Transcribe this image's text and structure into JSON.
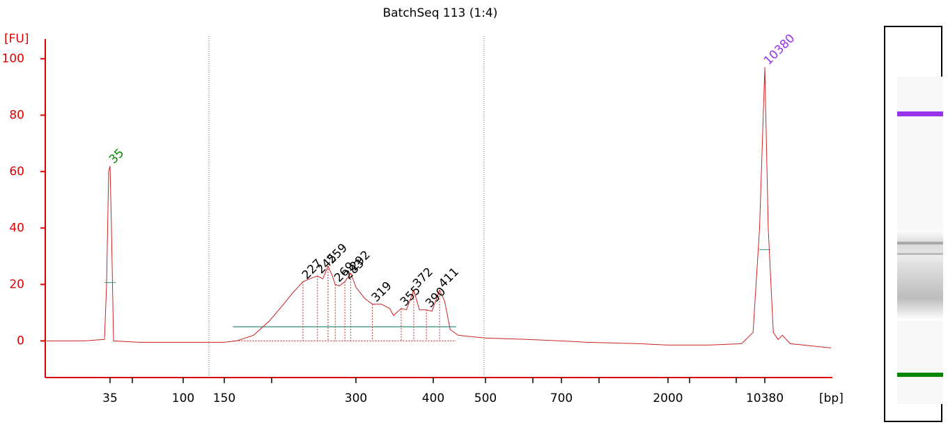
{
  "chart_data": {
    "type": "line",
    "title": "BatchSeq 113 (1:4)",
    "y_label": "[FU]",
    "x_label": "[bp]",
    "color": "#cc2222",
    "axis_color": "#dd0000",
    "xlim": [
      14,
      32000
    ],
    "ylim": [
      -13,
      107
    ],
    "yticks": [
      0,
      20,
      40,
      60,
      80,
      100
    ],
    "xticks": [
      35,
      100,
      150,
      300,
      400,
      500,
      700,
      2000,
      10380
    ],
    "x": [
      14,
      24,
      32.3,
      33.3,
      34.3,
      35,
      35.7,
      36.8,
      53,
      100,
      150,
      160,
      175,
      190,
      205,
      215,
      227,
      235,
      245,
      252,
      259,
      265,
      269,
      275,
      283,
      292,
      300,
      310,
      319,
      330,
      340,
      345,
      355,
      362,
      372,
      380,
      390,
      398,
      411,
      420,
      430,
      445,
      470,
      500,
      600,
      700,
      900,
      1500,
      2000,
      4000,
      7000,
      8500,
      9500,
      10380,
      11000,
      12000,
      13000,
      14000,
      16000,
      20000,
      32000
    ],
    "values": [
      0,
      0,
      0.5,
      20,
      60,
      62,
      40,
      0,
      -0.5,
      -0.5,
      -0.5,
      0,
      2,
      7,
      13,
      17,
      21,
      22,
      23,
      22,
      26.5,
      23,
      20,
      19.5,
      21,
      24,
      19,
      15,
      13,
      13,
      11.5,
      9,
      11.5,
      11,
      18,
      11,
      11,
      10.5,
      18,
      14,
      4,
      2,
      1.5,
      1,
      0.5,
      0,
      -0.5,
      -1,
      -1.5,
      -1.5,
      -1,
      3,
      40,
      97,
      40,
      3,
      0.5,
      2,
      -1,
      -1.5,
      -2.5
    ],
    "peaks": [
      {
        "x": 35,
        "y": 62,
        "color": "#008800",
        "marker": true
      },
      {
        "x": 227,
        "y": 21,
        "color": "#000000"
      },
      {
        "x": 245,
        "y": 23,
        "color": "#000000"
      },
      {
        "x": 259,
        "y": 26.5,
        "color": "#000000"
      },
      {
        "x": 269,
        "y": 20,
        "color": "#000000"
      },
      {
        "x": 283,
        "y": 21,
        "color": "#000000"
      },
      {
        "x": 292,
        "y": 24,
        "color": "#000000"
      },
      {
        "x": 319,
        "y": 13,
        "color": "#000000"
      },
      {
        "x": 355,
        "y": 11.5,
        "color": "#000000"
      },
      {
        "x": 372,
        "y": 18,
        "color": "#000000"
      },
      {
        "x": 390,
        "y": 11,
        "color": "#000000"
      },
      {
        "x": 411,
        "y": 18,
        "color": "#000000"
      },
      {
        "x": 10380,
        "y": 97,
        "color": "#9933ee",
        "marker": true
      }
    ],
    "region_lines": [
      129,
      497
    ],
    "baseline": {
      "from": 157,
      "to": 441,
      "y": 5,
      "color": "#2f8f7f"
    }
  }
}
